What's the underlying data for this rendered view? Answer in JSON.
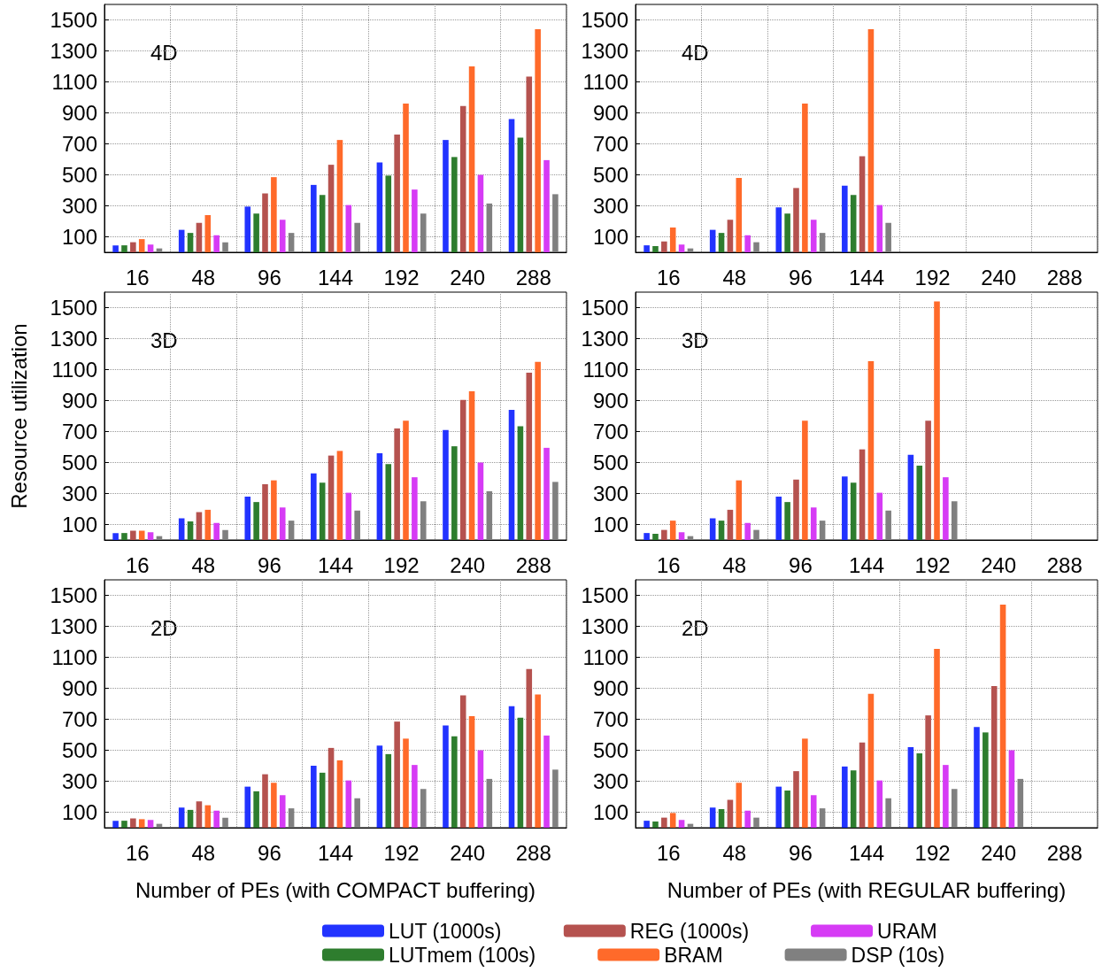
{
  "chart_data": [
    {
      "type": "bar",
      "annotations": [
        "4D"
      ],
      "categories": [
        "16",
        "48",
        "96",
        "144",
        "192",
        "240",
        "288"
      ],
      "ylim": [
        0,
        1600
      ],
      "yticks": [
        100,
        300,
        500,
        700,
        900,
        1100,
        1300,
        1500
      ],
      "grid": true,
      "series": [
        {
          "color": "#2233ff",
          "values": [
            45,
            145,
            295,
            435,
            580,
            725,
            860
          ]
        },
        {
          "color": "#2e7d2e",
          "values": [
            45,
            125,
            250,
            370,
            495,
            615,
            740
          ]
        },
        {
          "color": "#b5524f",
          "values": [
            65,
            190,
            380,
            565,
            760,
            945,
            1135
          ]
        },
        {
          "color": "#ff6a2a",
          "values": [
            85,
            240,
            485,
            725,
            960,
            1200,
            1440
          ]
        },
        {
          "color": "#d63bf5",
          "values": [
            50,
            110,
            210,
            305,
            405,
            500,
            595
          ]
        },
        {
          "color": "#808080",
          "values": [
            25,
            65,
            125,
            190,
            250,
            315,
            375
          ]
        }
      ]
    },
    {
      "type": "bar",
      "annotations": [
        "4D"
      ],
      "categories": [
        "16",
        "48",
        "96",
        "144",
        "192",
        "240",
        "288"
      ],
      "ylim": [
        0,
        1600
      ],
      "yticks": [
        100,
        300,
        500,
        700,
        900,
        1100,
        1300,
        1500
      ],
      "grid": true,
      "series": [
        {
          "color": "#2233ff",
          "values": [
            45,
            145,
            290,
            430,
            null,
            null,
            null
          ]
        },
        {
          "color": "#2e7d2e",
          "values": [
            40,
            125,
            250,
            370,
            null,
            null,
            null
          ]
        },
        {
          "color": "#b5524f",
          "values": [
            70,
            210,
            415,
            620,
            null,
            null,
            null
          ]
        },
        {
          "color": "#ff6a2a",
          "values": [
            160,
            480,
            960,
            1440,
            null,
            null,
            null
          ]
        },
        {
          "color": "#d63bf5",
          "values": [
            50,
            110,
            210,
            305,
            null,
            null,
            null
          ]
        },
        {
          "color": "#808080",
          "values": [
            25,
            65,
            125,
            190,
            null,
            null,
            null
          ]
        }
      ]
    },
    {
      "type": "bar",
      "annotations": [
        "3D"
      ],
      "ylabel": "Resource utilization",
      "categories": [
        "16",
        "48",
        "96",
        "144",
        "192",
        "240",
        "288"
      ],
      "ylim": [
        0,
        1600
      ],
      "yticks": [
        100,
        300,
        500,
        700,
        900,
        1100,
        1300,
        1500
      ],
      "grid": true,
      "series": [
        {
          "color": "#2233ff",
          "values": [
            45,
            140,
            280,
            430,
            560,
            710,
            840
          ]
        },
        {
          "color": "#2e7d2e",
          "values": [
            45,
            120,
            245,
            370,
            490,
            605,
            735
          ]
        },
        {
          "color": "#b5524f",
          "values": [
            60,
            180,
            360,
            545,
            720,
            905,
            1080
          ]
        },
        {
          "color": "#ff6a2a",
          "values": [
            60,
            195,
            385,
            575,
            770,
            960,
            1150
          ]
        },
        {
          "color": "#d63bf5",
          "values": [
            50,
            110,
            210,
            305,
            405,
            500,
            595
          ]
        },
        {
          "color": "#808080",
          "values": [
            25,
            65,
            125,
            190,
            250,
            315,
            375
          ]
        }
      ]
    },
    {
      "type": "bar",
      "annotations": [
        "3D"
      ],
      "categories": [
        "16",
        "48",
        "96",
        "144",
        "192",
        "240",
        "288"
      ],
      "ylim": [
        0,
        1600
      ],
      "yticks": [
        100,
        300,
        500,
        700,
        900,
        1100,
        1300,
        1500
      ],
      "grid": true,
      "series": [
        {
          "color": "#2233ff",
          "values": [
            45,
            140,
            280,
            410,
            550,
            null,
            null
          ]
        },
        {
          "color": "#2e7d2e",
          "values": [
            40,
            125,
            245,
            370,
            480,
            null,
            null
          ]
        },
        {
          "color": "#b5524f",
          "values": [
            65,
            195,
            390,
            585,
            770,
            null,
            null
          ]
        },
        {
          "color": "#ff6a2a",
          "values": [
            125,
            385,
            770,
            1155,
            1540,
            null,
            null
          ]
        },
        {
          "color": "#d63bf5",
          "values": [
            50,
            110,
            210,
            305,
            405,
            null,
            null
          ]
        },
        {
          "color": "#808080",
          "values": [
            25,
            65,
            125,
            190,
            250,
            null,
            null
          ]
        }
      ]
    },
    {
      "type": "bar",
      "annotations": [
        "2D"
      ],
      "xlabel": "Number of PEs (with COMPACT buffering)",
      "categories": [
        "16",
        "48",
        "96",
        "144",
        "192",
        "240",
        "288"
      ],
      "ylim": [
        0,
        1600
      ],
      "yticks": [
        100,
        300,
        500,
        700,
        900,
        1100,
        1300,
        1500
      ],
      "grid": true,
      "series": [
        {
          "color": "#2233ff",
          "values": [
            45,
            130,
            265,
            400,
            530,
            660,
            785
          ]
        },
        {
          "color": "#2e7d2e",
          "values": [
            45,
            115,
            235,
            355,
            475,
            590,
            710
          ]
        },
        {
          "color": "#b5524f",
          "values": [
            60,
            170,
            345,
            515,
            685,
            855,
            1025
          ]
        },
        {
          "color": "#ff6a2a",
          "values": [
            55,
            145,
            290,
            435,
            575,
            720,
            860
          ]
        },
        {
          "color": "#d63bf5",
          "values": [
            50,
            110,
            210,
            305,
            405,
            500,
            595
          ]
        },
        {
          "color": "#808080",
          "values": [
            25,
            65,
            125,
            190,
            250,
            315,
            375
          ]
        }
      ]
    },
    {
      "type": "bar",
      "annotations": [
        "2D"
      ],
      "xlabel": "Number of PEs (with REGULAR buffering)",
      "legend": "bottom",
      "categories": [
        "16",
        "48",
        "96",
        "144",
        "192",
        "240",
        "288"
      ],
      "ylim": [
        0,
        1600
      ],
      "yticks": [
        100,
        300,
        500,
        700,
        900,
        1100,
        1300,
        1500
      ],
      "grid": true,
      "series": [
        {
          "name": "LUT (1000s)",
          "color": "#2233ff",
          "values": [
            45,
            130,
            265,
            395,
            520,
            650,
            null
          ]
        },
        {
          "name": "LUTmem (100s)",
          "color": "#2e7d2e",
          "values": [
            40,
            120,
            240,
            370,
            480,
            615,
            null
          ]
        },
        {
          "name": "REG (1000s)",
          "color": "#b5524f",
          "values": [
            65,
            180,
            365,
            550,
            725,
            915,
            null
          ]
        },
        {
          "name": "BRAM",
          "color": "#ff6a2a",
          "values": [
            95,
            290,
            575,
            865,
            1155,
            1440,
            null
          ]
        },
        {
          "name": "URAM",
          "color": "#d63bf5",
          "values": [
            50,
            110,
            210,
            305,
            405,
            500,
            null
          ]
        },
        {
          "name": "DSP (10s)",
          "color": "#808080",
          "values": [
            25,
            65,
            125,
            190,
            250,
            315,
            null
          ]
        }
      ]
    }
  ]
}
